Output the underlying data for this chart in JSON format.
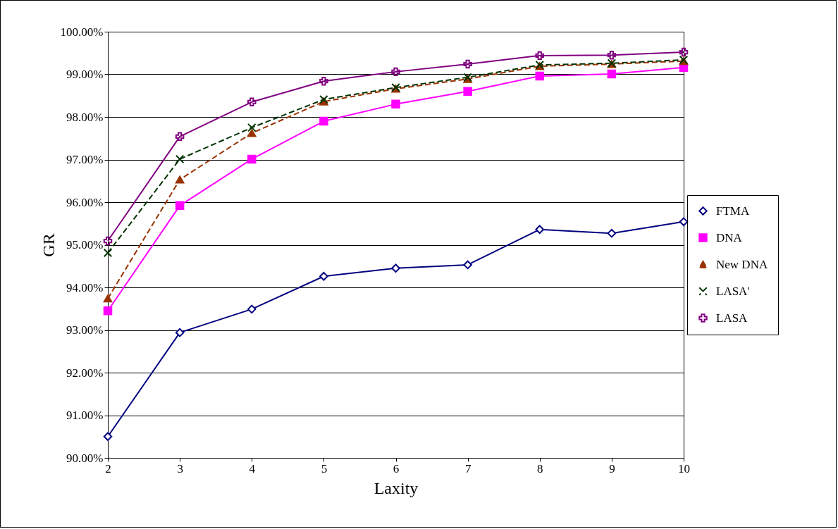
{
  "chart_data": {
    "type": "line",
    "xlabel": "Laxity",
    "ylabel": "GR",
    "x": [
      2,
      3,
      4,
      5,
      6,
      7,
      8,
      9,
      10
    ],
    "series": [
      {
        "name": "FTMA",
        "color": "#000080",
        "marker": "diamond",
        "line_style": "solid",
        "values": [
          90.5,
          92.94,
          93.49,
          94.26,
          94.45,
          94.53,
          95.36,
          95.27,
          95.54
        ]
      },
      {
        "name": "DNA",
        "color": "#ff00ff",
        "marker": "square",
        "line_style": "solid",
        "values": [
          93.45,
          95.92,
          97.01,
          97.9,
          98.3,
          98.6,
          98.96,
          99.01,
          99.16
        ]
      },
      {
        "name": "New DNA",
        "color": "#993300",
        "marker": "triangle",
        "line_style": "dashed",
        "values": [
          93.74,
          96.53,
          97.62,
          98.36,
          98.66,
          98.89,
          99.19,
          99.24,
          99.31
        ]
      },
      {
        "name": "LASA'",
        "color": "#003300",
        "marker": "cross",
        "line_style": "dashed",
        "values": [
          94.81,
          97.01,
          97.75,
          98.41,
          98.69,
          98.93,
          99.22,
          99.26,
          99.34
        ]
      },
      {
        "name": "LASA",
        "color": "#800080",
        "marker": "plus",
        "line_style": "solid",
        "values": [
          95.09,
          97.54,
          98.35,
          98.84,
          99.06,
          99.24,
          99.44,
          99.45,
          99.52
        ]
      }
    ],
    "xlim": [
      2,
      10
    ],
    "xticks": [
      2,
      3,
      4,
      5,
      6,
      7,
      8,
      9,
      10
    ],
    "ylim": [
      90,
      100
    ],
    "yticks": [
      {
        "value": 90,
        "label": "90.00%"
      },
      {
        "value": 91,
        "label": "91.00%"
      },
      {
        "value": 92,
        "label": "92.00%"
      },
      {
        "value": 93,
        "label": "93.00%"
      },
      {
        "value": 94,
        "label": "94.00%"
      },
      {
        "value": 95,
        "label": "95.00%"
      },
      {
        "value": 96,
        "label": "96.00%"
      },
      {
        "value": 97,
        "label": "97.00%"
      },
      {
        "value": 98,
        "label": "98.00%"
      },
      {
        "value": 99,
        "label": "99.00%"
      },
      {
        "value": 100,
        "label": "100.00%"
      }
    ],
    "grid": "y",
    "legend": "right"
  }
}
